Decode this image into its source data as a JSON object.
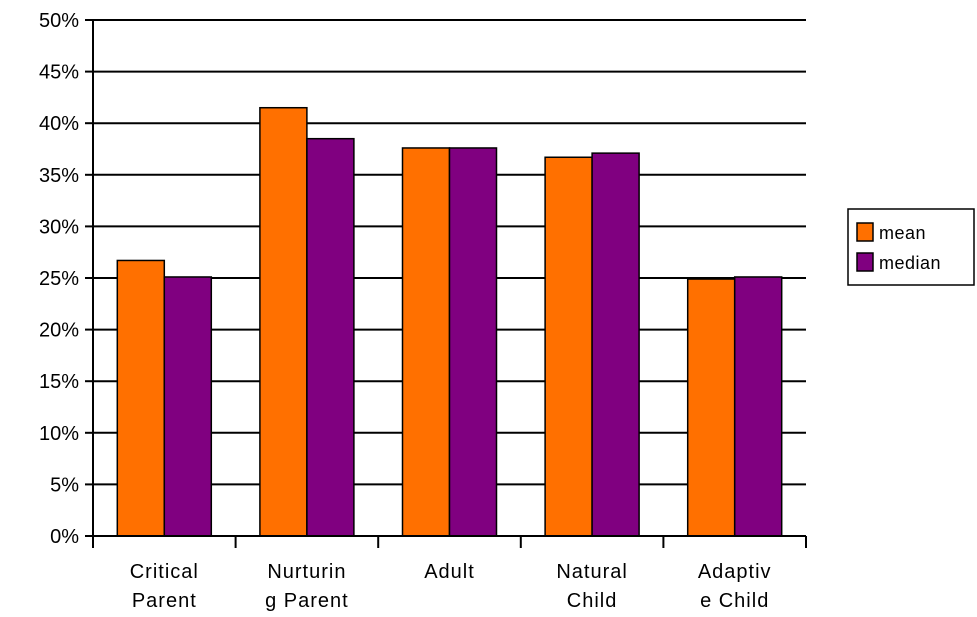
{
  "chart_data": {
    "type": "bar",
    "categories": [
      [
        "Critical",
        "Parent"
      ],
      [
        "Nurturin",
        "g Parent"
      ],
      [
        "Adult"
      ],
      [
        "Natural",
        "Child"
      ],
      [
        "Adaptiv",
        "e Child"
      ]
    ],
    "series": [
      {
        "name": "mean",
        "color": "#FF7000",
        "values": [
          26.7,
          41.5,
          37.6,
          36.7,
          24.9
        ]
      },
      {
        "name": "median",
        "color": "#800080",
        "values": [
          25.1,
          38.5,
          37.6,
          37.1,
          25.1
        ]
      }
    ],
    "y_ticks": [
      "0%",
      "5%",
      "10%",
      "15%",
      "20%",
      "25%",
      "30%",
      "35%",
      "40%",
      "45%",
      "50%"
    ],
    "ylim": [
      0,
      50
    ],
    "y_unit": "%",
    "grid": true,
    "legend_position": "right",
    "title": "",
    "xlabel": "",
    "ylabel": ""
  }
}
